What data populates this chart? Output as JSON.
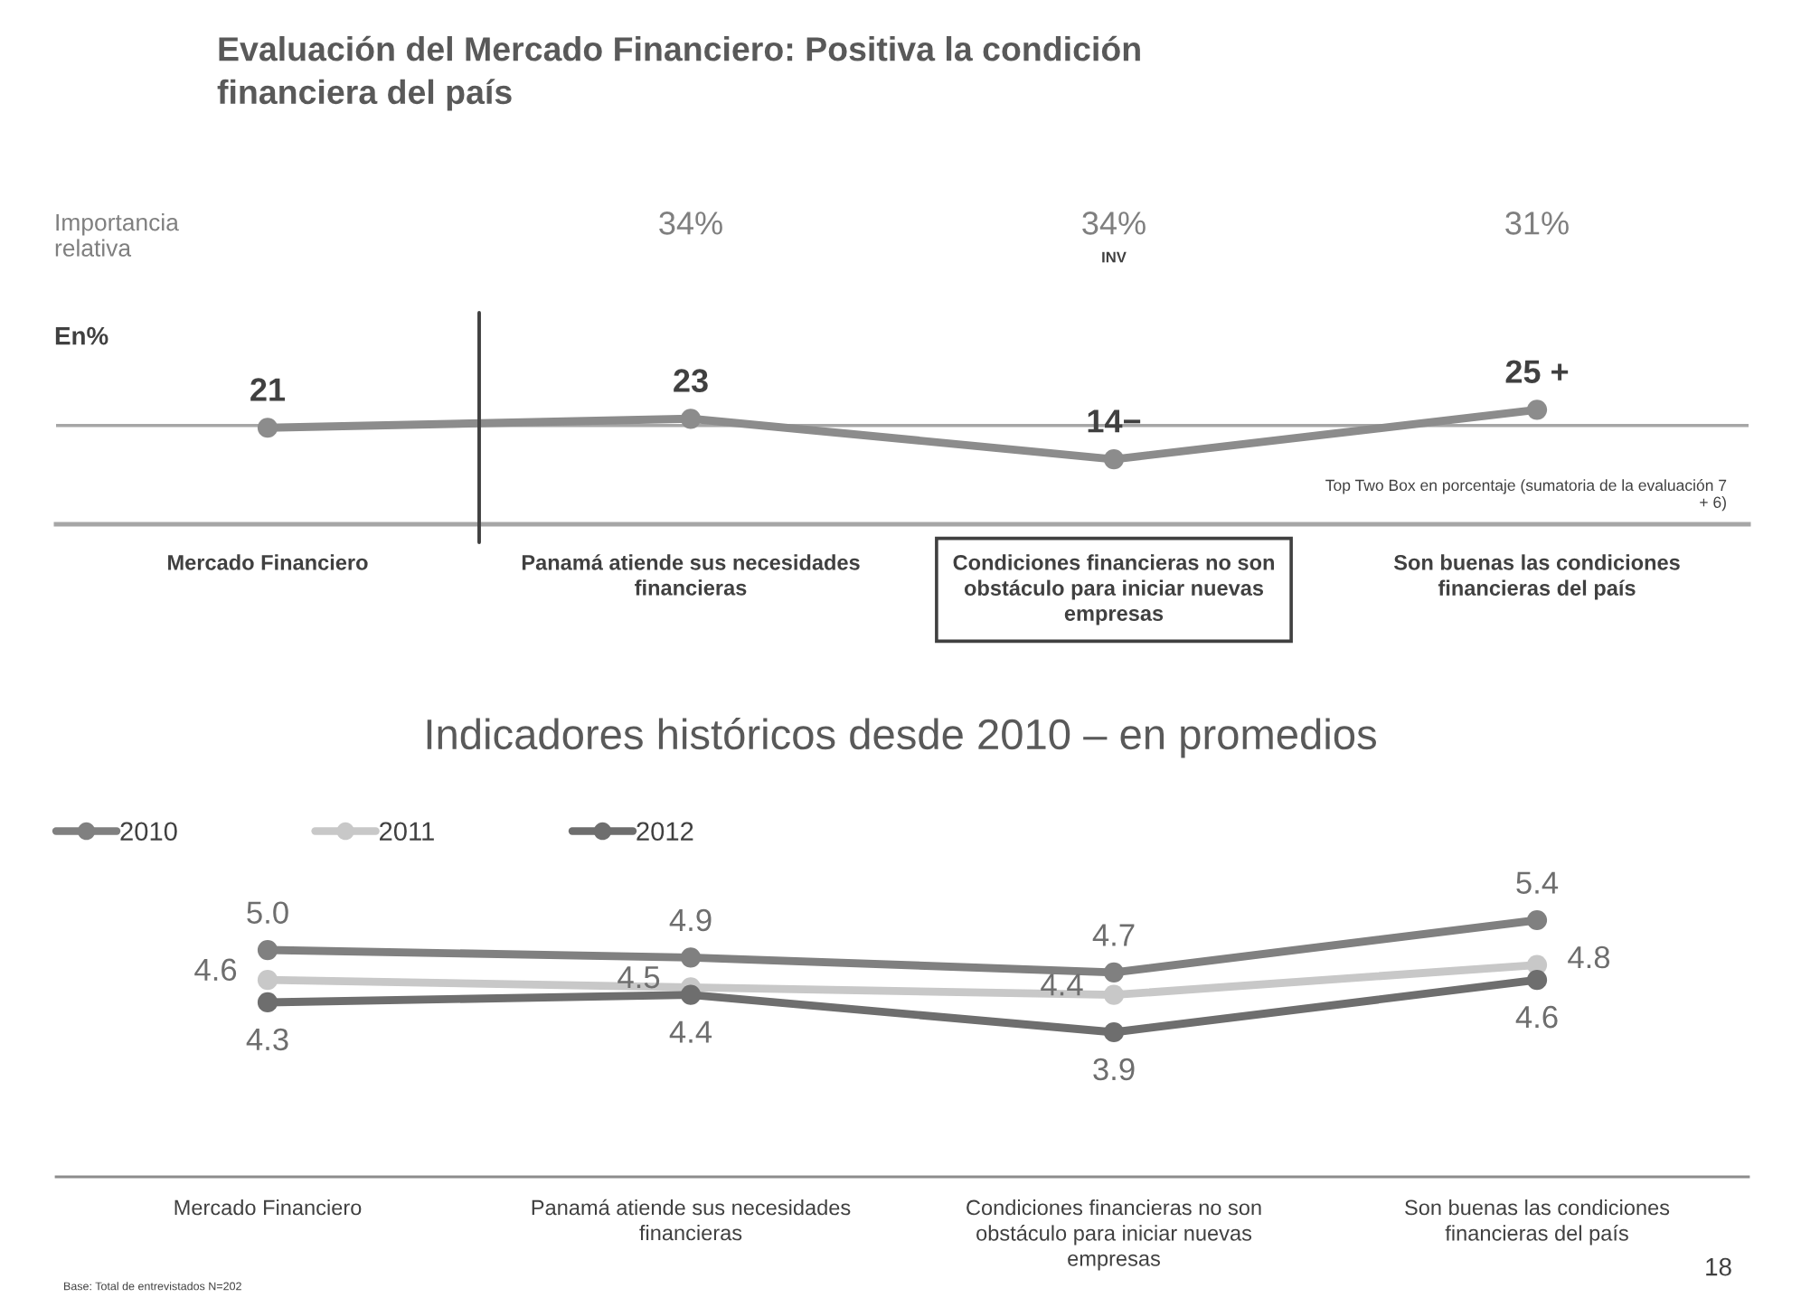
{
  "chart_data": [
    {
      "type": "line",
      "title": "Evaluación del Mercado Financiero: Positiva la condición financiera del país",
      "ylabel": "En%",
      "categories": [
        "Mercado Financiero",
        "Panamá atiende sus necesidades financieras",
        "Condiciones financieras no son obstáculo para iniciar nuevas empresas",
        "Son buenas las condiciones financieras del país"
      ],
      "series": [
        {
          "color": "#8c8c8c",
          "values": [
            21,
            23,
            14,
            25
          ],
          "value_labels": [
            "21",
            "23",
            "14−",
            "25 +"
          ]
        }
      ],
      "tick_labels": "x",
      "marker": "circle",
      "ref_lines": [
        {
          "axis": "y",
          "value": 21.5,
          "color": "#a6a6a6"
        }
      ],
      "annotations": [
        "Importancia relativa",
        "34%",
        "34%",
        "INV",
        "31%",
        "Top Two Box en porcentaje (sumatoria de la evaluación 7 + 6)"
      ]
    },
    {
      "type": "line",
      "title": "Indicadores históricos desde 2010 – en promedios",
      "categories": [
        "Mercado Financiero",
        "Panamá atiende sus necesidades financieras",
        "Condiciones financieras no son obstáculo para iniciar nuevas empresas",
        "Son buenas las condiciones financieras del país"
      ],
      "series": [
        {
          "name": "2010",
          "color": "#808080",
          "values": [
            5.0,
            4.9,
            4.7,
            5.4
          ],
          "value_labels": [
            "5.0",
            "4.9",
            "4.7",
            "5.4"
          ]
        },
        {
          "name": "2011",
          "color": "#c8c8c8",
          "values": [
            4.6,
            4.5,
            4.4,
            4.8
          ],
          "value_labels": [
            "4.6",
            "4.5",
            "4.4",
            "4.8"
          ]
        },
        {
          "name": "2012",
          "color": "#6e6e6e",
          "values": [
            4.3,
            4.4,
            3.9,
            4.6
          ],
          "value_labels": [
            "4.3",
            "4.4",
            "3.9",
            "4.6"
          ]
        }
      ],
      "tick_labels": "x",
      "marker": "circle",
      "legend": "top left",
      "annotations": [
        "Base: Total de entrevistados N=202",
        "18"
      ]
    }
  ]
}
